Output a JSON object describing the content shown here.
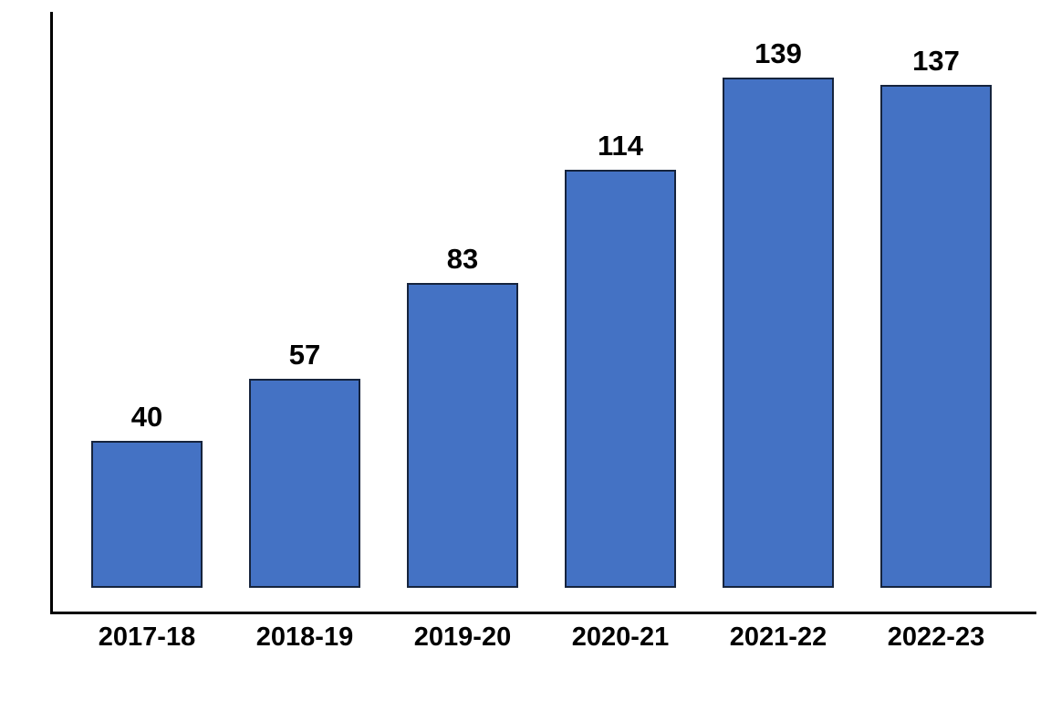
{
  "chart_data": {
    "type": "bar",
    "title": "",
    "xlabel": "",
    "ylabel": "",
    "categories": [
      "2017-18",
      "2018-19",
      "2019-20",
      "2020-21",
      "2021-22",
      "2022-23"
    ],
    "values": [
      40,
      57,
      83,
      114,
      139,
      137
    ],
    "ylim": [
      0,
      160
    ],
    "grid": false,
    "legend": null,
    "data_labels_shown": true,
    "colors": {
      "bar_fill": "#4472C4",
      "bar_border": "#16243D",
      "axis_line": "#000000",
      "label_text": "#000000",
      "background": "#FFFFFF"
    }
  }
}
